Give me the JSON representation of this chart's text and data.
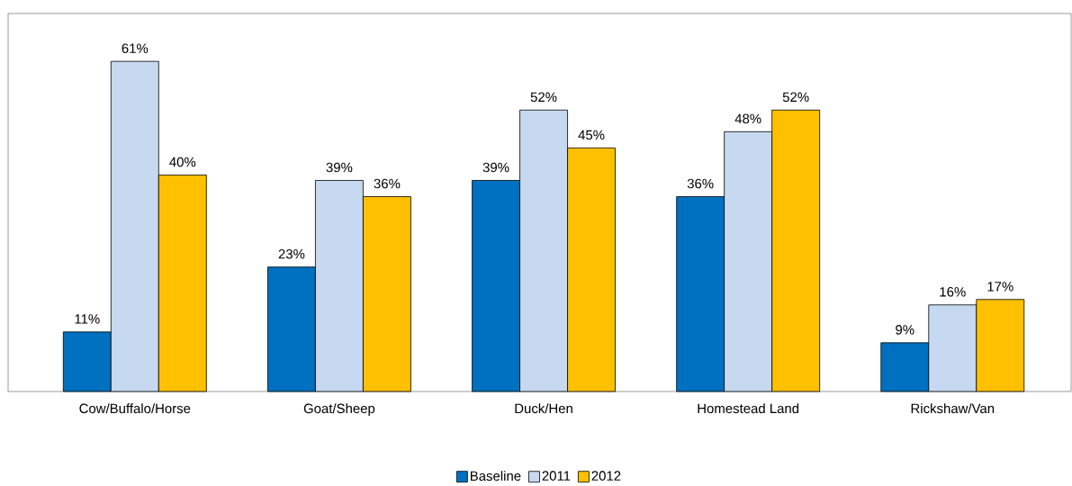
{
  "chart_data": {
    "type": "bar",
    "categories": [
      "Cow/Buffalo/Horse",
      "Goat/Sheep",
      "Duck/Hen",
      "Homestead Land",
      "Rickshaw/Van"
    ],
    "series": [
      {
        "name": "Baseline",
        "color": "#0070c0",
        "values": [
          11,
          23,
          39,
          36,
          9
        ],
        "value_labels": [
          "11%",
          "23%",
          "39%",
          "36%",
          "9%"
        ]
      },
      {
        "name": "2011",
        "color": "#c6d9f1",
        "values": [
          61,
          39,
          52,
          48,
          16
        ],
        "value_labels": [
          "61%",
          "39%",
          "52%",
          "48%",
          "16%"
        ]
      },
      {
        "name": "2012",
        "color": "#ffc000",
        "values": [
          40,
          36,
          45,
          52,
          17
        ],
        "value_labels": [
          "40%",
          "36%",
          "45%",
          "52%",
          "17%"
        ]
      }
    ],
    "legend": "bottom",
    "tick_labels": "x",
    "grid": false
  }
}
